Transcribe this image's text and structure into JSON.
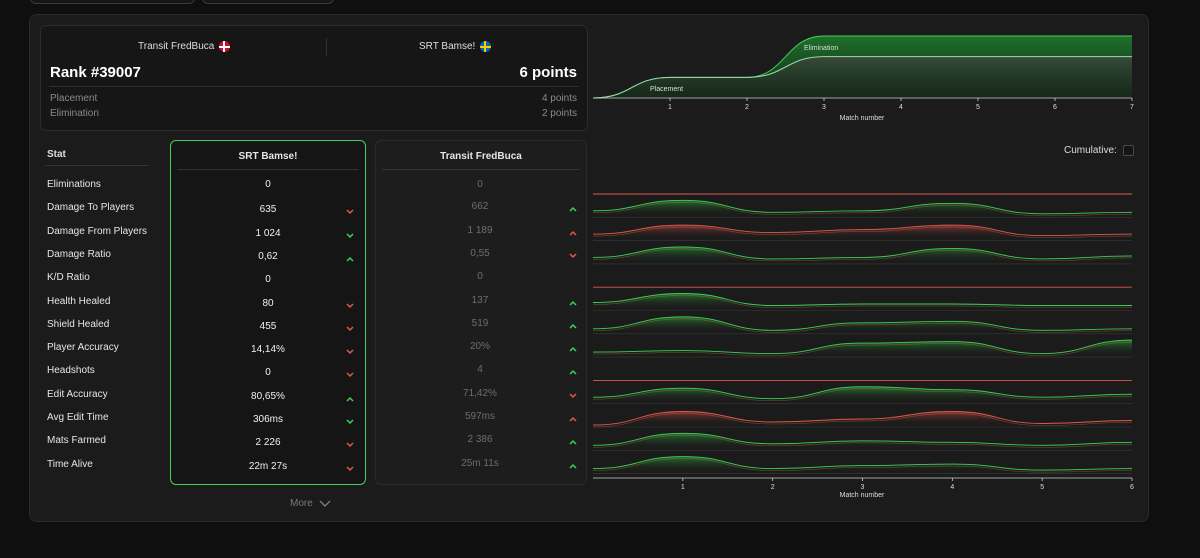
{
  "summary": {
    "team_left": "Transit FredBuca",
    "team_right": "SRT Bamse!",
    "rank": "Rank #39007",
    "points": "6 points",
    "rows": [
      {
        "label": "Placement",
        "value": "4 points"
      },
      {
        "label": "Elimination",
        "value": "2 points"
      }
    ]
  },
  "table": {
    "stat_header": "Stat",
    "col_a_title": "SRT Bamse!",
    "col_b_title": "Transit FredBuca",
    "rows": [
      {
        "stat": "Eliminations",
        "a": "0",
        "b": "0",
        "a_arrow": "",
        "b_arrow": ""
      },
      {
        "stat": "Damage To Players",
        "a": "635",
        "b": "662",
        "a_arrow": "down",
        "b_arrow": "up"
      },
      {
        "stat": "Damage From Players",
        "a": "1 024",
        "b": "1 189",
        "a_arrow": "down-green",
        "b_arrow": "up-red"
      },
      {
        "stat": "Damage Ratio",
        "a": "0,62",
        "b": "0,55",
        "a_arrow": "up",
        "b_arrow": "down"
      },
      {
        "stat": "K/D Ratio",
        "a": "0",
        "b": "0",
        "a_arrow": "",
        "b_arrow": ""
      },
      {
        "stat": "Health Healed",
        "a": "80",
        "b": "137",
        "a_arrow": "down",
        "b_arrow": "up"
      },
      {
        "stat": "Shield Healed",
        "a": "455",
        "b": "519",
        "a_arrow": "down",
        "b_arrow": "up"
      },
      {
        "stat": "Player Accuracy",
        "a": "14,14%",
        "b": "20%",
        "a_arrow": "down",
        "b_arrow": "up"
      },
      {
        "stat": "Headshots",
        "a": "0",
        "b": "4",
        "a_arrow": "down",
        "b_arrow": "up"
      },
      {
        "stat": "Edit Accuracy",
        "a": "80,65%",
        "b": "71,42%",
        "a_arrow": "up",
        "b_arrow": "down"
      },
      {
        "stat": "Avg Edit Time",
        "a": "306ms",
        "b": "597ms",
        "a_arrow": "down-green",
        "b_arrow": "up-red"
      },
      {
        "stat": "Mats Farmed",
        "a": "2 226",
        "b": "2 386",
        "a_arrow": "down",
        "b_arrow": "up"
      },
      {
        "stat": "Time Alive",
        "a": "22m 27s",
        "b": "25m 11s",
        "a_arrow": "down",
        "b_arrow": "up"
      }
    ],
    "more_label": "More"
  },
  "cumulative_label": "Cumulative:",
  "colors": {
    "green": "#3fcf5a",
    "red": "#e0584f",
    "orange": "#d9823f"
  },
  "chart_data": [
    {
      "type": "area",
      "title": "",
      "xlabel": "Match number",
      "x_ticks": [
        "1",
        "2",
        "3",
        "4",
        "5",
        "6",
        "7"
      ],
      "xlim": [
        0,
        7
      ],
      "ylim": [
        0,
        6
      ],
      "series": [
        {
          "name": "Placement",
          "x": [
            0,
            1,
            2,
            3,
            4,
            5,
            6,
            7
          ],
          "values": [
            0,
            2,
            2,
            4,
            4,
            4,
            4,
            4
          ]
        },
        {
          "name": "Elimination",
          "x": [
            0,
            1,
            2,
            3,
            4,
            5,
            6,
            7
          ],
          "values": [
            0,
            2,
            2,
            6,
            6,
            6,
            6,
            6
          ]
        }
      ],
      "annotations": [
        "Placement",
        "Elimination"
      ]
    },
    {
      "type": "area",
      "title": "",
      "xlabel": "Match number",
      "x_ticks": [
        "1",
        "2",
        "3",
        "4",
        "5",
        "6"
      ],
      "xlim": [
        0,
        6
      ],
      "series": [
        {
          "name": "Eliminations",
          "values": [
            0,
            0,
            0,
            0,
            0,
            0,
            0
          ]
        },
        {
          "name": "Damage To Players",
          "values": [
            0.3,
            1,
            0.2,
            0.3,
            0.8,
            0.1,
            0.2
          ]
        },
        {
          "name": "Damage From Players",
          "values": [
            0.3,
            0.9,
            0.4,
            0.6,
            0.9,
            0.2,
            0.3
          ]
        },
        {
          "name": "Damage Ratio",
          "values": [
            0.3,
            1,
            0.2,
            0.3,
            0.9,
            0.2,
            0.4
          ]
        },
        {
          "name": "K/D Ratio",
          "values": [
            0,
            0,
            0,
            0,
            0,
            0,
            0
          ]
        },
        {
          "name": "Health Healed",
          "values": [
            0.4,
            1,
            0.2,
            0.3,
            0.3,
            0.2,
            0.2
          ]
        },
        {
          "name": "Shield Healed",
          "values": [
            0.2,
            1,
            0.1,
            0.6,
            0.7,
            0.1,
            0.2
          ]
        },
        {
          "name": "Player Accuracy",
          "values": [
            0.2,
            0.3,
            0.1,
            0.8,
            0.9,
            0.1,
            1
          ]
        },
        {
          "name": "Headshots",
          "values": [
            0,
            0,
            0,
            0,
            0,
            0,
            0
          ]
        },
        {
          "name": "Edit Accuracy",
          "values": [
            0.3,
            0.9,
            0.2,
            1,
            0.8,
            0.3,
            0.5
          ]
        },
        {
          "name": "Avg Edit Time",
          "values": [
            0,
            0.9,
            0.2,
            0.4,
            0.9,
            0.1,
            0.3
          ]
        },
        {
          "name": "Mats Farmed",
          "values": [
            0.2,
            1,
            0.3,
            0.5,
            0.4,
            0.2,
            0.4
          ]
        },
        {
          "name": "Time Alive",
          "values": [
            0.2,
            1,
            0.2,
            0.4,
            0.5,
            0.1,
            0.2
          ]
        }
      ]
    }
  ]
}
